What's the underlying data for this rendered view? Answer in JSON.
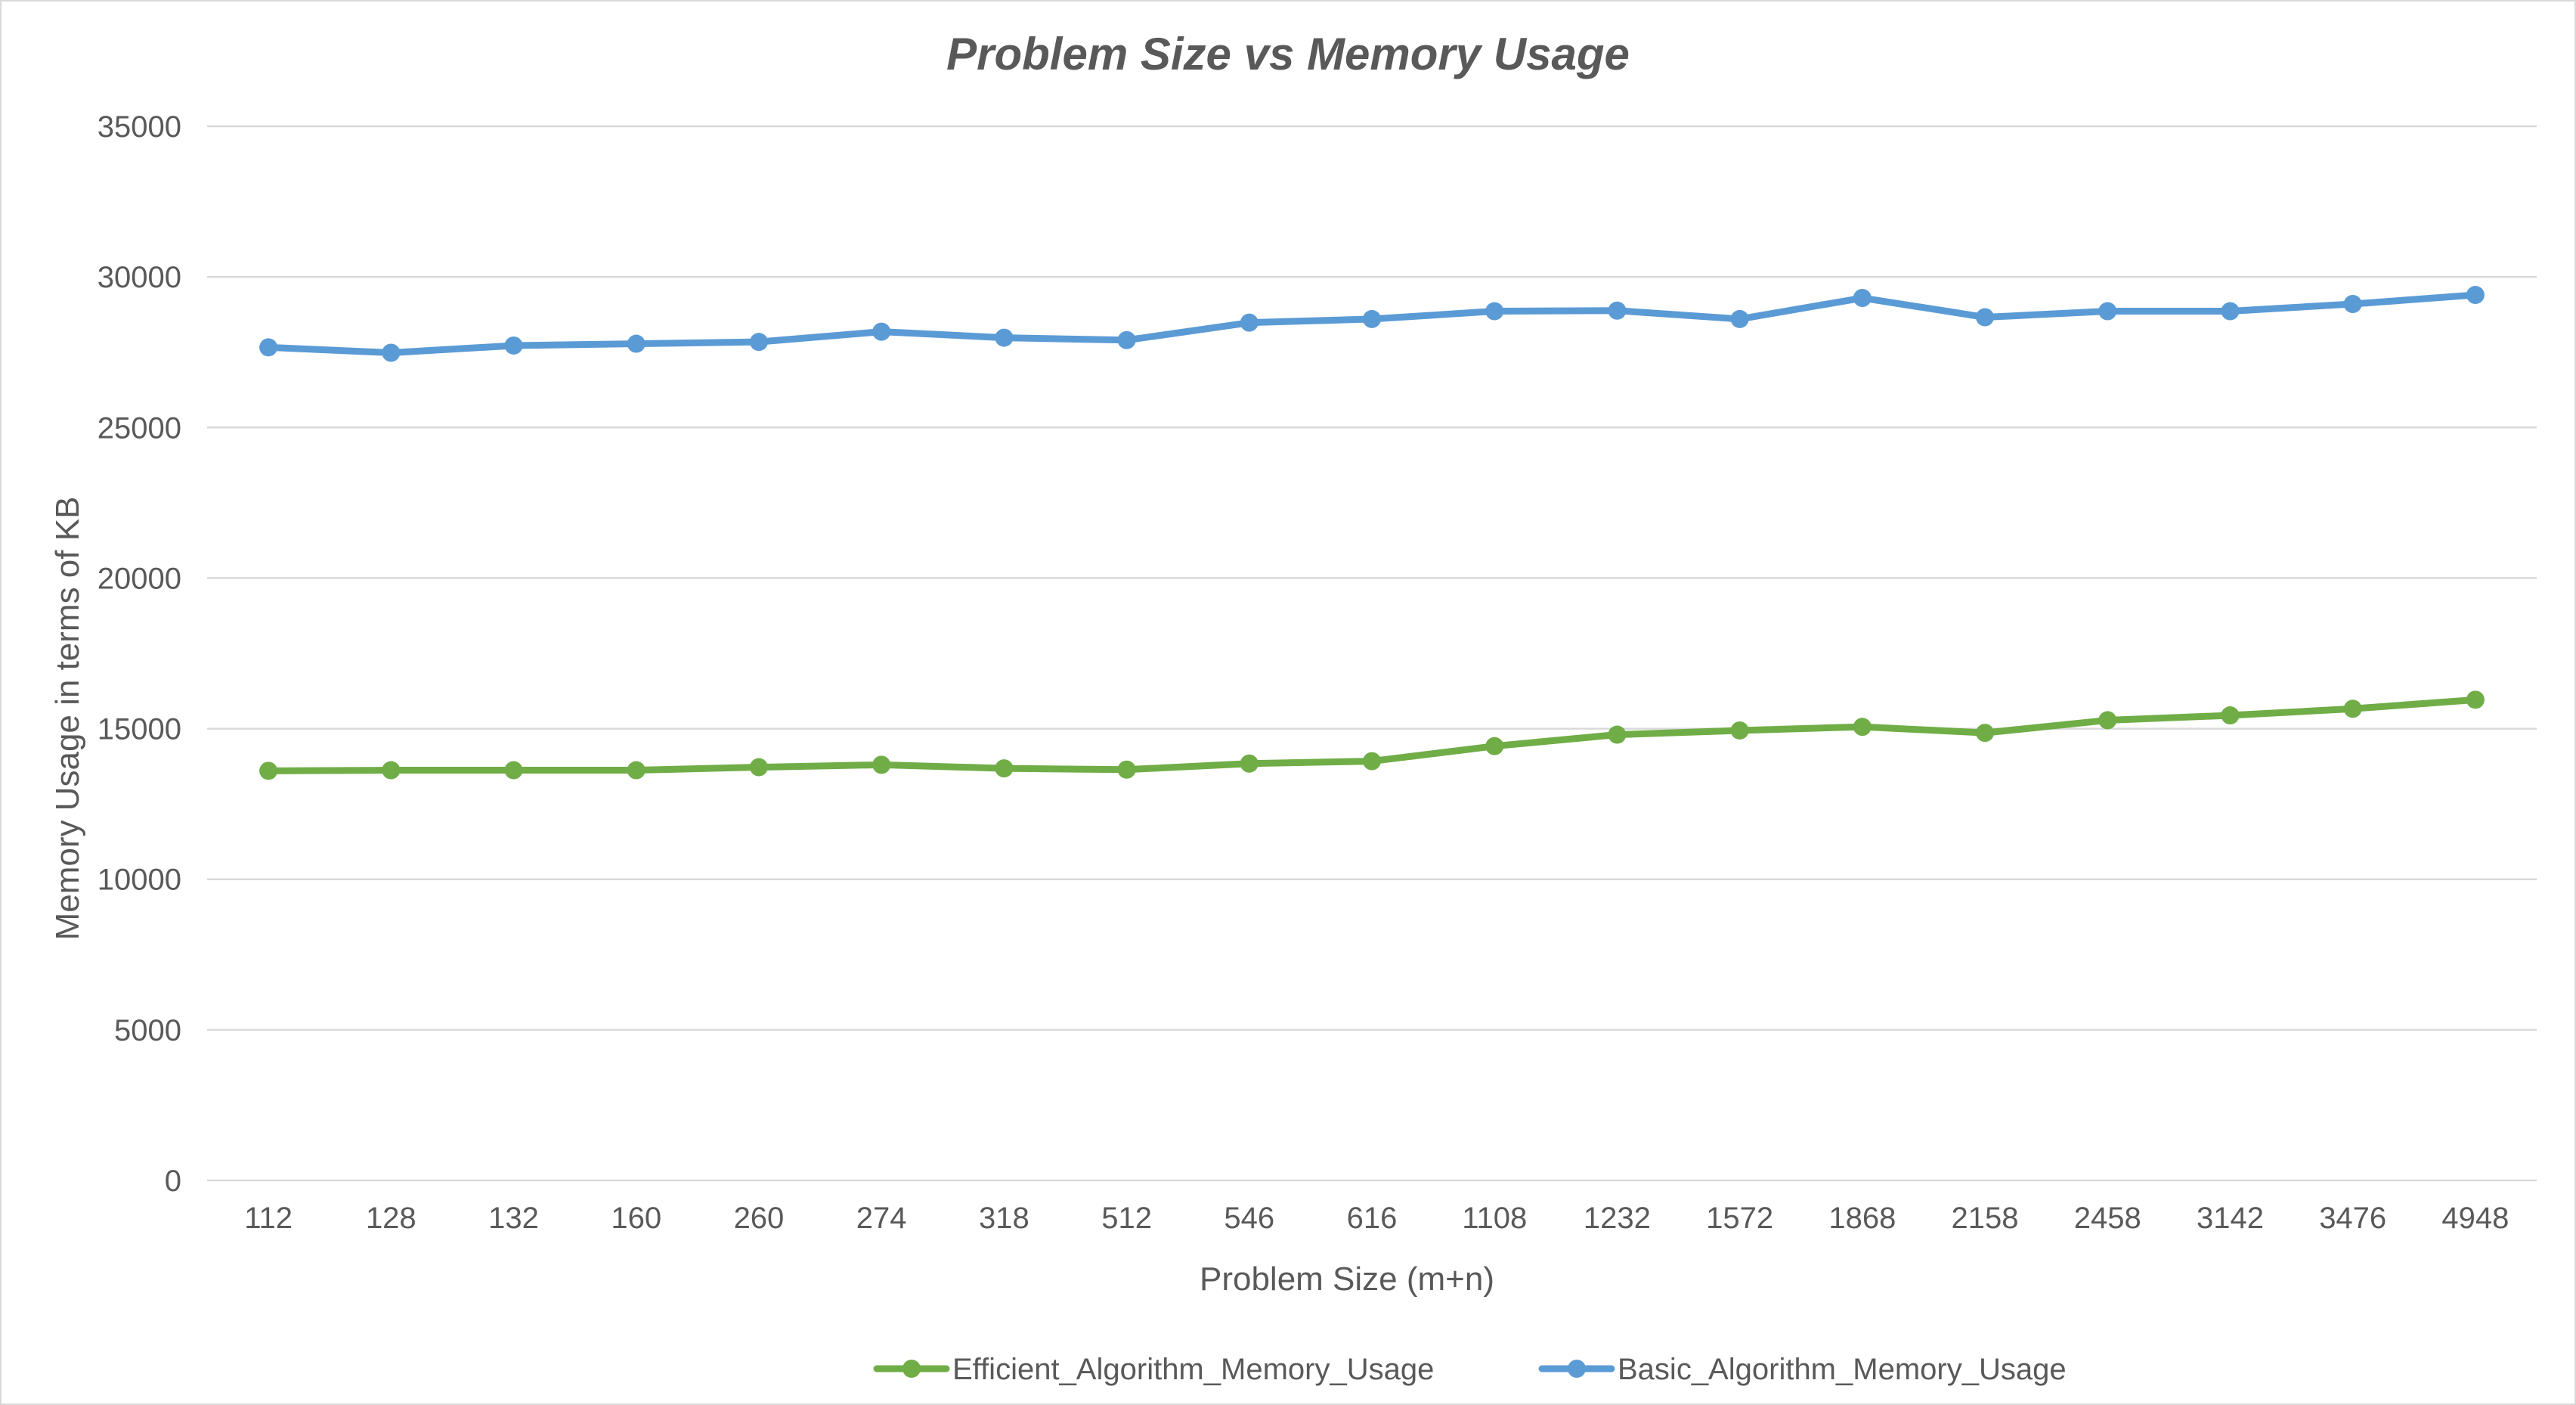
{
  "chart_data": {
    "type": "line",
    "title": "Problem Size vs Memory Usage",
    "xlabel": "Problem Size (m+n)",
    "ylabel": "Memory Usage in terms of KB",
    "categories": [
      "112",
      "128",
      "132",
      "160",
      "260",
      "274",
      "318",
      "512",
      "546",
      "616",
      "1108",
      "1232",
      "1572",
      "1868",
      "2158",
      "2458",
      "3142",
      "3476",
      "4948"
    ],
    "ylim": [
      0,
      35000
    ],
    "yticks": [
      "0",
      "5000",
      "10000",
      "15000",
      "20000",
      "25000",
      "30000",
      "35000"
    ],
    "grid": true,
    "legend_position": "bottom",
    "series": [
      {
        "name": "Efficient_Algorithm_Memory_Usage",
        "color": "#70ad47",
        "values": [
          13600,
          13620,
          13620,
          13620,
          13720,
          13800,
          13680,
          13640,
          13840,
          13920,
          14420,
          14800,
          14940,
          15060,
          14860,
          15280,
          15440,
          15660,
          15960
        ]
      },
      {
        "name": "Basic_Algorithm_Memory_Usage",
        "color": "#5b9bd5",
        "values": [
          27660,
          27480,
          27720,
          27780,
          27840,
          28180,
          27980,
          27900,
          28480,
          28600,
          28860,
          28880,
          28600,
          29300,
          28660,
          28860,
          28860,
          29100,
          29400
        ]
      }
    ]
  }
}
